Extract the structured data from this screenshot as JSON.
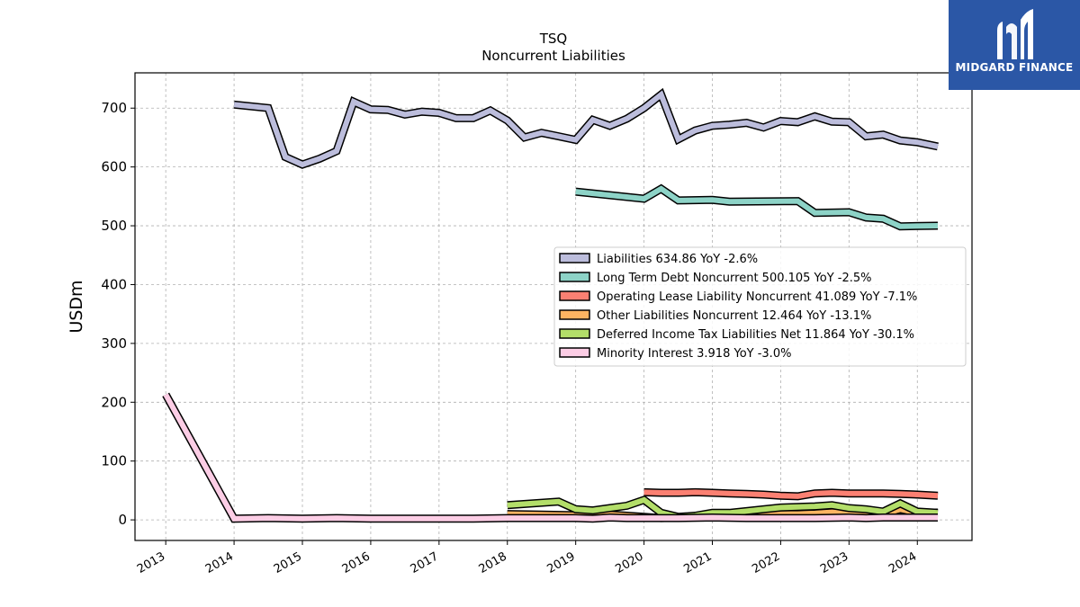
{
  "brand": {
    "name": "MIDGARD FINANCE",
    "bg_color": "#2b57a6"
  },
  "chart_data": {
    "type": "line",
    "title": "TSQ",
    "subtitle": "Noncurrent  Liabilities",
    "ylabel": "USDm",
    "ylim": [
      -35,
      760
    ],
    "yticks": [
      0,
      100,
      200,
      300,
      400,
      500,
      600,
      700
    ],
    "xlim": [
      2012.55,
      2024.8
    ],
    "xticks": [
      "2013",
      "2014",
      "2015",
      "2016",
      "2017",
      "2018",
      "2019",
      "2020",
      "2021",
      "2022",
      "2023",
      "2024"
    ],
    "grid": true,
    "legend_position": "center-right",
    "series": [
      {
        "name": "Liabilities  634.86 YoY -2.6%",
        "color": "#bcbddc",
        "x": [
          2014.0,
          2014.5,
          2014.75,
          2015.0,
          2015.25,
          2015.5,
          2015.75,
          2016.0,
          2016.25,
          2016.5,
          2016.75,
          2017.0,
          2017.25,
          2017.5,
          2017.75,
          2018.0,
          2018.25,
          2018.5,
          2018.75,
          2019.0,
          2019.25,
          2019.5,
          2019.75,
          2020.0,
          2020.25,
          2020.5,
          2020.75,
          2021.0,
          2021.25,
          2021.5,
          2021.75,
          2022.0,
          2022.25,
          2022.5,
          2022.75,
          2023.0,
          2023.25,
          2023.5,
          2023.75,
          2024.0,
          2024.3
        ],
        "values": [
          706,
          700,
          617,
          604,
          614,
          627,
          711,
          698,
          697,
          689,
          694,
          692,
          683,
          683,
          696,
          679,
          650,
          658,
          652,
          646,
          680,
          670,
          682,
          700,
          723,
          647,
          662,
          670,
          672,
          675,
          667,
          678,
          676,
          686,
          677,
          676,
          652,
          655,
          645,
          642,
          634.86
        ]
      },
      {
        "name": "Long Term Debt Noncurrent  500.105 YoY -2.5%",
        "color": "#8dd3c7",
        "x": [
          2019.0,
          2020.0,
          2020.25,
          2020.5,
          2021.0,
          2021.25,
          2022.25,
          2022.5,
          2023.0,
          2023.25,
          2023.5,
          2023.75,
          2024.3
        ],
        "values": [
          558,
          546,
          563,
          543,
          544,
          541,
          542,
          522,
          523,
          514,
          512,
          499,
          500.1
        ]
      },
      {
        "name": "Operating Lease Liability Noncurrent  41.089 YoY -7.1%",
        "color": "#fb8072",
        "x": [
          2020.0,
          2020.25,
          2020.5,
          2020.75,
          2021.0,
          2021.25,
          2021.5,
          2021.75,
          2022.0,
          2022.25,
          2022.5,
          2022.75,
          2023.0,
          2023.25,
          2023.5,
          2023.75,
          2024.0,
          2024.3
        ],
        "values": [
          47,
          46,
          46,
          47,
          46,
          45,
          44,
          43,
          41,
          40,
          45,
          46,
          45,
          45,
          45,
          44,
          43,
          41.1
        ]
      },
      {
        "name": "Other Liabilities Noncurrent  12.464 YoY -13.1%",
        "color": "#fdb462",
        "x": [
          2018.0,
          2018.5,
          2019.0,
          2019.5,
          2020.0,
          2020.25,
          2020.5,
          2021.0,
          2021.5,
          2022.0,
          2022.25,
          2022.5,
          2022.75,
          2023.0,
          2023.25,
          2023.5,
          2023.75,
          2024.0,
          2024.3
        ],
        "values": [
          10,
          9,
          8,
          9,
          5,
          3,
          4,
          6,
          8,
          10,
          10,
          11,
          13,
          12,
          11,
          10,
          18,
          12,
          12.46
        ]
      },
      {
        "name": "Deferred Income Tax Liabilities Net  11.864 YoY -30.1%",
        "color": "#b3de69",
        "x": [
          2018.0,
          2018.75,
          2019.0,
          2019.25,
          2019.5,
          2019.75,
          2020.0,
          2020.25,
          2020.5,
          2020.75,
          2021.0,
          2021.25,
          2021.5,
          2021.75,
          2022.0,
          2022.25,
          2022.5,
          2022.75,
          2023.0,
          2023.25,
          2023.5,
          2023.75,
          2024.0,
          2024.3
        ],
        "values": [
          25,
          31,
          18,
          16,
          20,
          24,
          34,
          12,
          5,
          7,
          12,
          12,
          15,
          18,
          21,
          22,
          23,
          25,
          20,
          18,
          14,
          28,
          14,
          11.86
        ]
      },
      {
        "name": "Minority Interest  3.918 YoY -3.0%",
        "color": "#fccde5",
        "x": [
          2013.0,
          2014.0,
          2014.5,
          2015.0,
          2015.5,
          2016.0,
          2016.5,
          2017.0,
          2017.5,
          2018.0,
          2018.5,
          2019.0,
          2019.25,
          2019.5,
          2019.75,
          2020.0,
          2020.5,
          2021.0,
          2021.5,
          2022.0,
          2022.5,
          2023.0,
          2023.25,
          2023.5,
          2024.0,
          2024.3
        ],
        "values": [
          213,
          2,
          3,
          2,
          3,
          2,
          2,
          2,
          2,
          3,
          3,
          3,
          2,
          4,
          3,
          3,
          3,
          4,
          3,
          3,
          3,
          4,
          3,
          4,
          4,
          3.92
        ]
      }
    ]
  }
}
